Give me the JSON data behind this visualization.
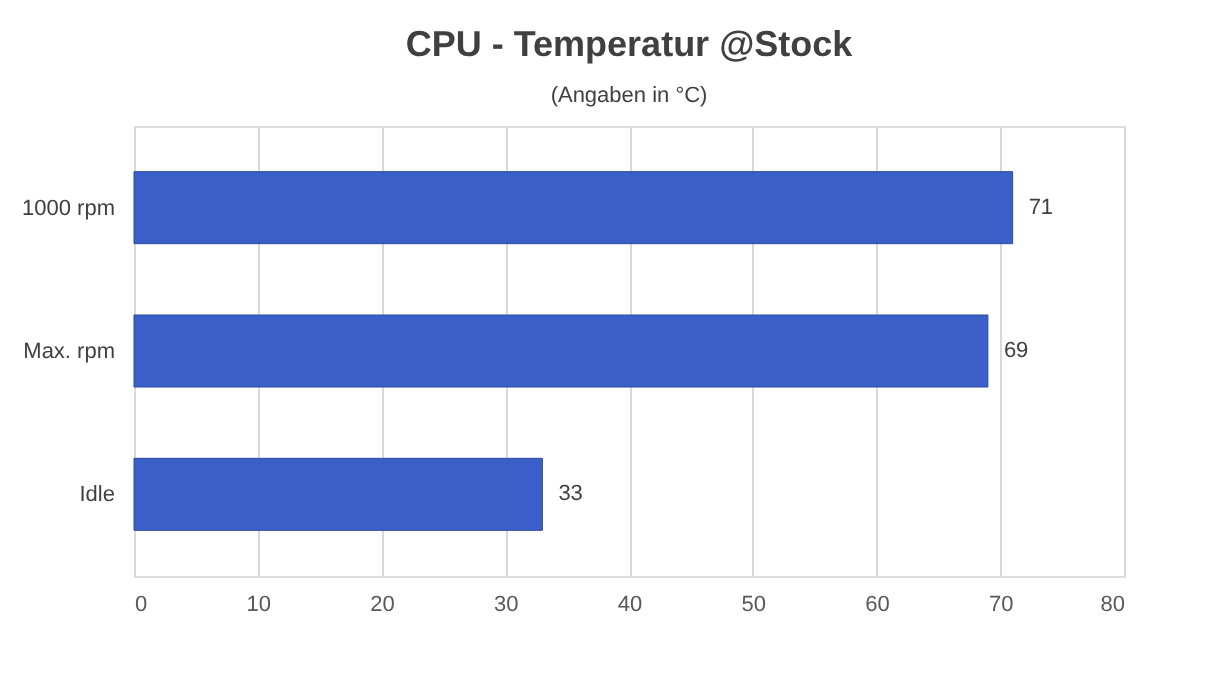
{
  "chart_data": {
    "type": "bar",
    "orientation": "horizontal",
    "title": "CPU - Temperatur @Stock",
    "subtitle": "(Angaben in °C)",
    "categories": [
      "1000 rpm",
      "Max. rpm",
      "Idle"
    ],
    "values": [
      71,
      69,
      33
    ],
    "color": "#3a5fc8",
    "xlim": [
      0,
      80
    ],
    "xticks": [
      0,
      10,
      20,
      30,
      40,
      50,
      60,
      70,
      80
    ],
    "grid": "x",
    "data_labels": true
  }
}
